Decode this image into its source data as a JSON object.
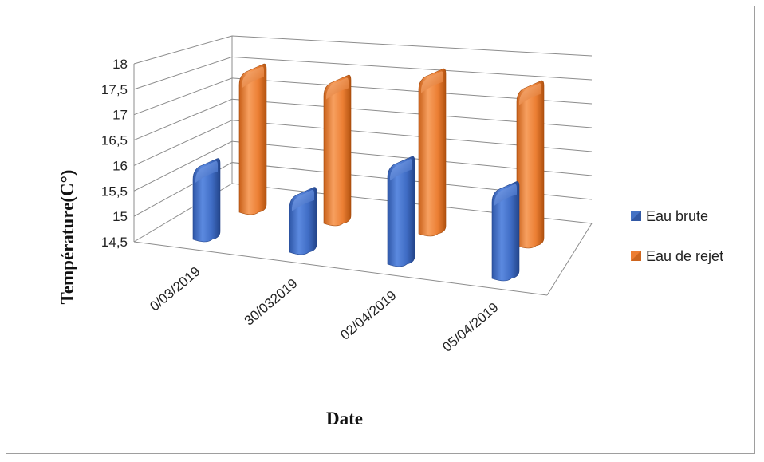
{
  "chart_data": {
    "type": "bar",
    "style": "3d-cylinder",
    "title": "",
    "xlabel": "Date",
    "ylabel": "Température(C°)",
    "categories": [
      "0/03/2019",
      "30/032019",
      "02/04/2019",
      "05/04/2019"
    ],
    "series": [
      {
        "name": "Eau brute",
        "color": "#4472C4",
        "values": [
          15.8,
          15.5,
          16.3,
          16.1
        ]
      },
      {
        "name": "Eau de rejet",
        "color": "#ED7D31",
        "values": [
          16.95,
          16.95,
          17.25,
          17.25
        ]
      }
    ],
    "ylim": [
      14.5,
      18
    ],
    "yticks": [
      "14,5",
      "15",
      "15,5",
      "16",
      "16,5",
      "17",
      "17,5",
      "18"
    ],
    "grid": true,
    "legend_position": "right"
  }
}
